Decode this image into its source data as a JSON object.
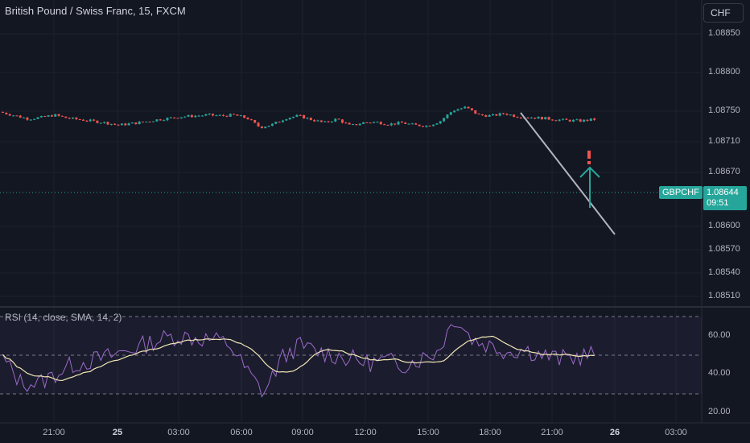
{
  "header": {
    "title": "British Pound / Swiss Franc, 15, FXCM",
    "currency_button": "CHF"
  },
  "price_axis": {
    "ticks": [
      "1.08850",
      "1.08800",
      "1.08750",
      "1.08710",
      "1.08670",
      "1.08600",
      "1.08570",
      "1.08540",
      "1.08510"
    ]
  },
  "time_axis": {
    "ticks": [
      "21:00",
      "25",
      "03:00",
      "06:00",
      "09:00",
      "12:00",
      "15:00",
      "18:00",
      "21:00",
      "26",
      "03:00"
    ]
  },
  "current_price": {
    "symbol": "GBPCHF",
    "price": "1.08644",
    "countdown": "09:51"
  },
  "rsi": {
    "label": "RSI (14, close, SMA, 14, 2)",
    "ticks": [
      "60.00",
      "40.00",
      "20.00"
    ]
  },
  "colors": {
    "background": "#131722",
    "up": "#26a69a",
    "down": "#ef5350",
    "rsi_line": "#9c6bc9",
    "rsi_ma": "#f0e6b4",
    "trendline": "#b2b5be",
    "alert": "#ef5350"
  },
  "annotations": {
    "alert_icon": "exclamation-icon",
    "arrow_icon": "arrow-up-icon"
  }
}
